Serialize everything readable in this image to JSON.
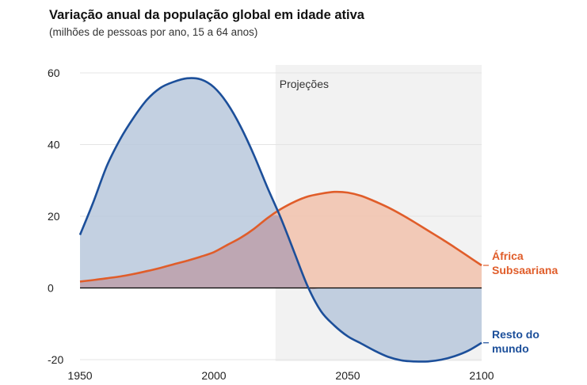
{
  "header": {
    "title": "Variação anual da população global em idade ativa",
    "subtitle": "(milhões de pessoas por ano, 15 a 64 anos)"
  },
  "chart_data": {
    "type": "area",
    "title": "Variação anual da população global em idade ativa",
    "subtitle": "(milhões de pessoas por ano, 15 a 64 anos)",
    "xlabel": "",
    "ylabel": "",
    "xlim": [
      1950,
      2100
    ],
    "ylim": [
      -20,
      60
    ],
    "x_ticks": [
      "1950",
      "2000",
      "2050",
      "2100"
    ],
    "y_ticks": [
      "60",
      "40",
      "20",
      "0",
      "-20"
    ],
    "grid": true,
    "projection_start": 2023,
    "projection_label": "Projeções",
    "series": [
      {
        "name": "Resto do mundo",
        "label_lines": [
          "Resto do",
          "mundo"
        ],
        "color": "#1c4f9a",
        "fill": "#b9c8dc",
        "x": [
          1950,
          1955,
          1960,
          1965,
          1970,
          1975,
          1980,
          1985,
          1990,
          1995,
          2000,
          2005,
          2010,
          2015,
          2020,
          2025,
          2030,
          2035,
          2040,
          2045,
          2050,
          2055,
          2060,
          2065,
          2070,
          2075,
          2080,
          2085,
          2090,
          2095,
          2100
        ],
        "values": [
          14.8,
          24,
          34,
          41.5,
          47.5,
          52.5,
          55.8,
          57.5,
          58.5,
          58.2,
          56,
          51.5,
          45,
          37,
          28,
          19.5,
          10,
          0.5,
          -6.5,
          -10.5,
          -13.5,
          -15.5,
          -17.5,
          -19.2,
          -20.2,
          -20.5,
          -20.5,
          -20,
          -19,
          -17.5,
          -15.3
        ]
      },
      {
        "name": "África Subsaariana",
        "label_lines": [
          "África",
          "Subsaariana"
        ],
        "color": "#e05d2a",
        "fill": "#f2c2ad",
        "x": [
          1950,
          1955,
          1960,
          1965,
          1970,
          1975,
          1980,
          1985,
          1990,
          1995,
          2000,
          2005,
          2010,
          2015,
          2020,
          2025,
          2030,
          2035,
          2040,
          2045,
          2050,
          2055,
          2060,
          2065,
          2070,
          2075,
          2080,
          2085,
          2090,
          2095,
          2100
        ],
        "values": [
          1.8,
          2.2,
          2.7,
          3.2,
          3.9,
          4.7,
          5.6,
          6.6,
          7.6,
          8.7,
          10,
          12,
          14,
          16.5,
          19.5,
          22,
          24,
          25.5,
          26.3,
          26.8,
          26.6,
          25.7,
          24.2,
          22.5,
          20.5,
          18.3,
          16,
          13.7,
          11.3,
          8.8,
          6.3
        ]
      }
    ]
  },
  "colors": {
    "blue_line": "#1c4f9a",
    "blue_fill": "#b9c8dc",
    "orange_line": "#e05d2a",
    "orange_fill": "#f2c2ad",
    "overlap_fill": "#b9a4b2",
    "projection_band": "#f2f2f2"
  }
}
